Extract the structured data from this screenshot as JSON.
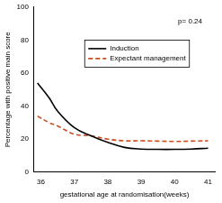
{
  "chart_data": {
    "type": "line",
    "x_label": "gestational age at randomisation(weeks)",
    "y_label": "Percentage with positive main score",
    "annotations": [
      "p= 0.24"
    ],
    "xlim": [
      35.8,
      41.2
    ],
    "xticks": [
      36,
      37,
      38,
      39,
      40,
      41
    ],
    "ylim": [
      0,
      100
    ],
    "yticks": [
      0,
      20,
      40,
      60,
      80,
      100
    ],
    "grid": false,
    "legend": "upper center",
    "x": [
      35.9,
      36.25,
      36.5,
      37,
      37.5,
      38,
      38.5,
      39,
      39.5,
      40,
      40.5,
      41
    ],
    "series": [
      {
        "name": "Induction",
        "color": "#000000",
        "line_style": "solid",
        "marker": "none",
        "values": [
          54,
          45,
          37,
          27,
          22,
          18,
          15,
          14,
          13.8,
          13.8,
          14,
          14.5
        ]
      },
      {
        "name": "Expectant management",
        "color": "#cc4c1f",
        "line_style": "dashed",
        "marker": "none",
        "values": [
          34,
          30,
          28,
          23,
          22,
          20,
          19,
          19,
          18.8,
          18.6,
          18.8,
          19
        ]
      }
    ]
  }
}
